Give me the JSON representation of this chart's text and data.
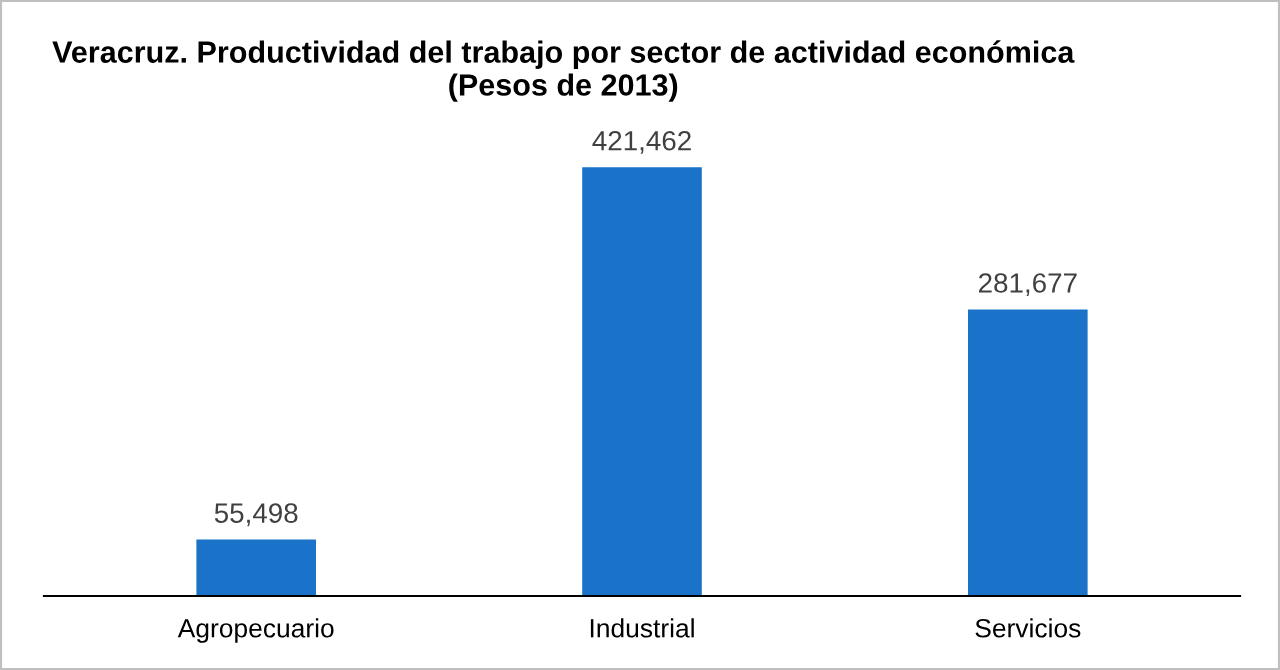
{
  "chart_data": {
    "type": "bar",
    "title": "Veracruz. Productividad del trabajo por sector de actividad económica\n(Pesos de 2013)",
    "categories": [
      "Agropecuario",
      "Industrial",
      "Servicios"
    ],
    "values": [
      55498,
      421462,
      281677
    ],
    "value_labels": [
      "55,498",
      "421,462",
      "281,677"
    ],
    "color": "#1a73c9",
    "grid": false,
    "legend": false
  }
}
